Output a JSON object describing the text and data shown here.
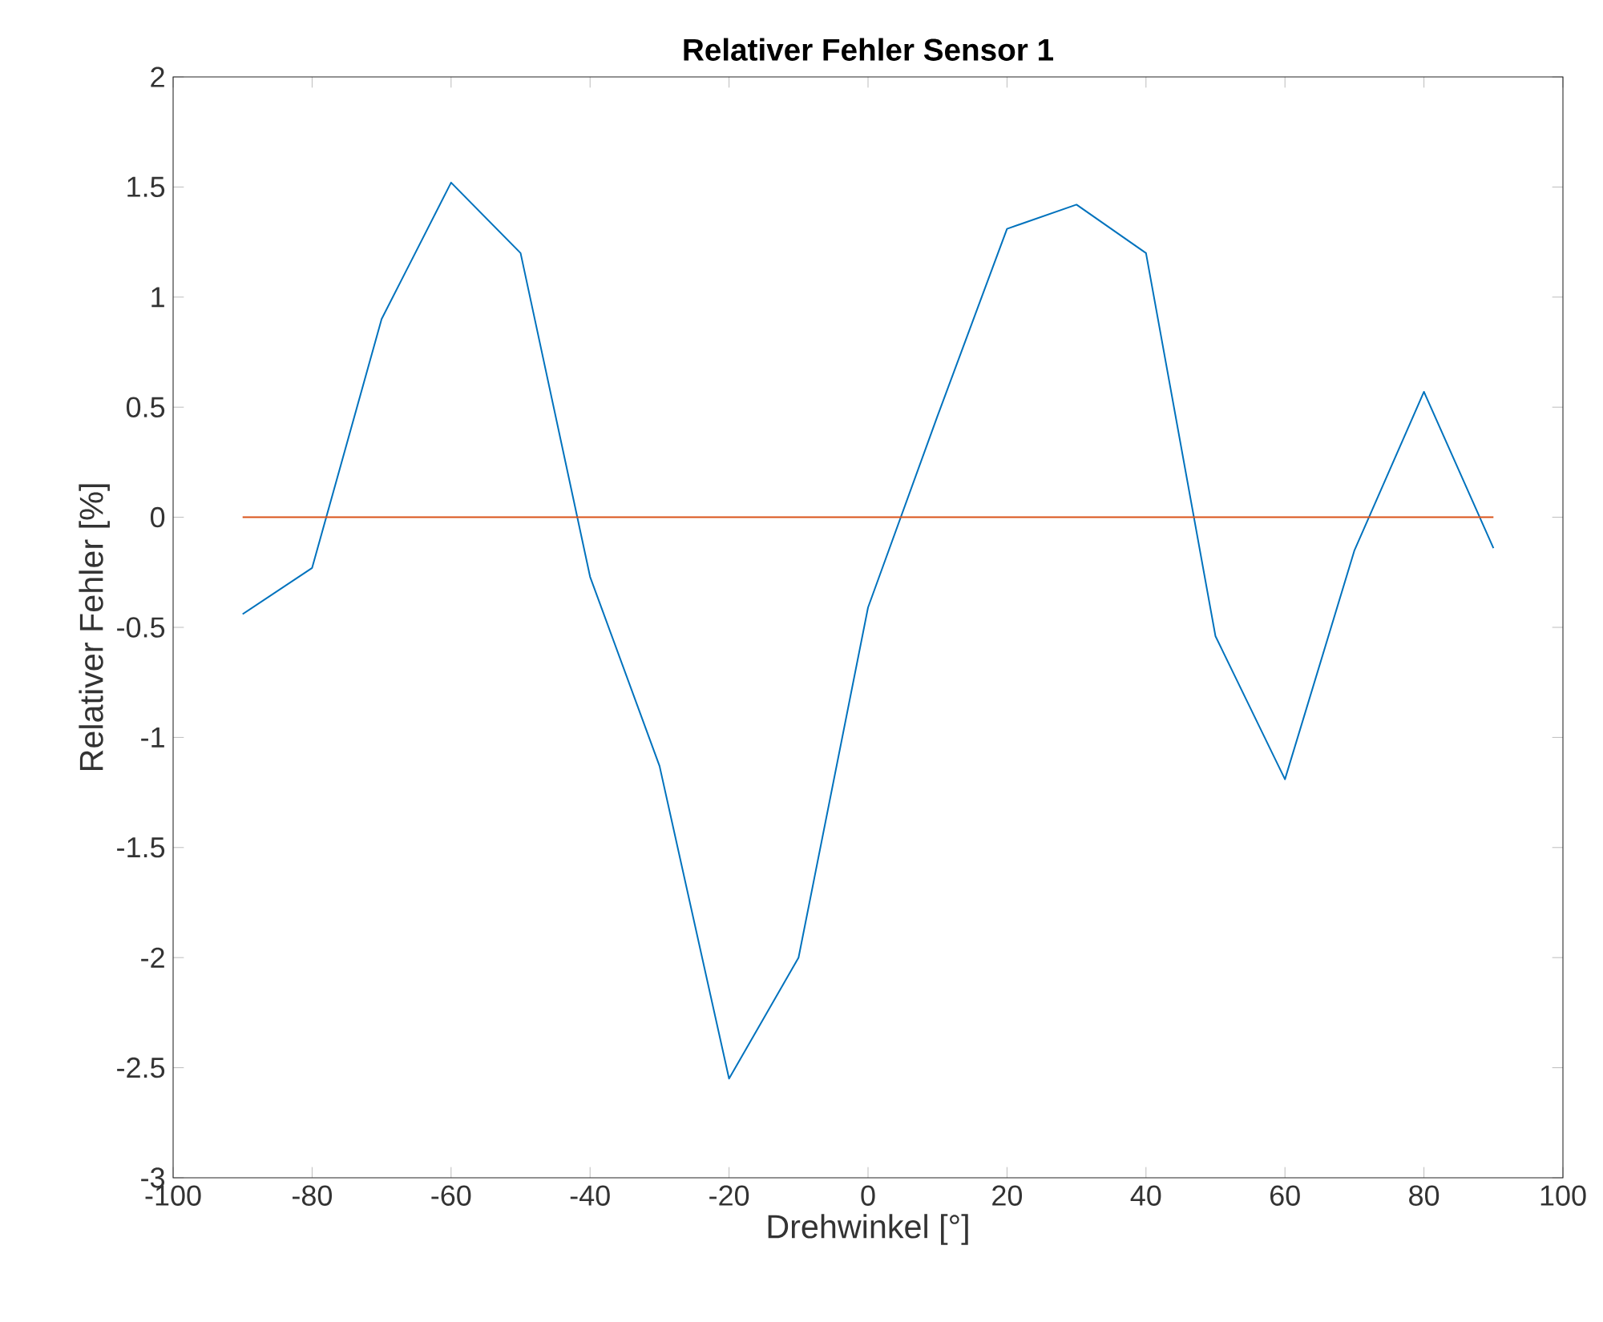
{
  "chart_data": {
    "type": "line",
    "title": "Relativer Fehler Sensor 1",
    "xlabel": "Drehwinkel [°]",
    "ylabel": "Relativer Fehler [%]",
    "series": [
      {
        "color": "#0072bd",
        "x": [
          -90,
          -80,
          -70,
          -60,
          -50,
          -40,
          -30,
          -20,
          -10,
          0,
          10,
          20,
          30,
          40,
          50,
          60,
          70,
          80,
          90
        ],
        "values": [
          -0.44,
          -0.23,
          0.9,
          1.52,
          1.2,
          -0.27,
          -1.13,
          -2.55,
          -2.0,
          -0.41,
          0.46,
          1.31,
          1.42,
          1.2,
          -0.54,
          -1.19,
          -0.15,
          0.57,
          -0.14
        ]
      },
      {
        "color": "#d95319",
        "x": [
          -90,
          90
        ],
        "values": [
          0,
          0
        ]
      }
    ],
    "xlim": [
      -100,
      100
    ],
    "ylim": [
      -3,
      2
    ],
    "xticks": [
      -100,
      -80,
      -60,
      -40,
      -20,
      0,
      20,
      40,
      60,
      80,
      100
    ],
    "yticks": [
      -3,
      -2.5,
      -2,
      -1.5,
      -1,
      -0.5,
      0,
      0.5,
      1,
      1.5,
      2
    ],
    "grid": false
  }
}
